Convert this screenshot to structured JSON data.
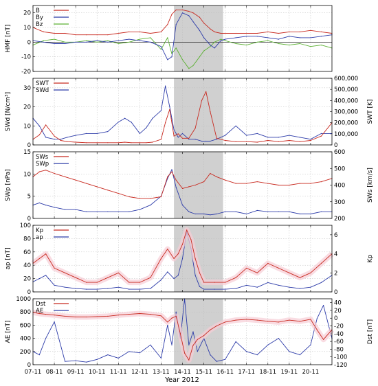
{
  "figure": {
    "xlabel": "Year 2012",
    "x_tick_labels": [
      "07-11",
      "08-11",
      "09-11",
      "10-11",
      "11-11",
      "12-11",
      "13-11",
      "14-11",
      "15-11",
      "16-11",
      "17-11",
      "18-11",
      "19-11",
      "20-11"
    ],
    "x_range": [
      7,
      21
    ],
    "shaded_interval": [
      13.6,
      15.9
    ],
    "colors": {
      "red": "#c8281e",
      "blue": "#2b3aa8",
      "green": "#5bb032",
      "shade": "#d0d0d0",
      "grid": "#bdbdbd",
      "pink_band": "#f6cdd6"
    }
  },
  "chart_data": [
    {
      "type": "line",
      "panel": "HMF",
      "ylabel": "HMF [nT]",
      "ylim": [
        -20,
        25
      ],
      "yticks": [
        "20",
        "10",
        "0",
        "-10",
        "-20"
      ],
      "ytick_values": [
        20,
        10,
        0,
        -10,
        -20
      ],
      "legend": "top-left",
      "x": [
        7.0,
        7.5,
        8.0,
        8.5,
        9.0,
        9.5,
        10.0,
        10.5,
        11.0,
        11.5,
        12.0,
        12.5,
        13.0,
        13.3,
        13.5,
        13.7,
        14.0,
        14.3,
        14.5,
        14.8,
        15.0,
        15.3,
        15.5,
        15.8,
        16.0,
        16.5,
        17.0,
        17.5,
        18.0,
        18.5,
        19.0,
        19.5,
        20.0,
        20.5,
        21.0
      ],
      "series": [
        {
          "name": "B",
          "color": "#c8281e",
          "axis": "left",
          "values": [
            10,
            7,
            6,
            6,
            5,
            5,
            5,
            5,
            6,
            7,
            7,
            6,
            7,
            12,
            19,
            22,
            22,
            21,
            20,
            17,
            13,
            9,
            7,
            6,
            6,
            6,
            6,
            6,
            7,
            6,
            7,
            7,
            8,
            7,
            6
          ]
        },
        {
          "name": "By",
          "color": "#2b3aa8",
          "axis": "left",
          "values": [
            1,
            0,
            -1,
            -1,
            0,
            0,
            1,
            0,
            1,
            2,
            1,
            0,
            -3,
            -12,
            -10,
            12,
            20,
            18,
            14,
            8,
            3,
            -2,
            -4,
            1,
            2,
            3,
            4,
            4,
            3,
            2,
            4,
            3,
            3,
            4,
            5
          ]
        },
        {
          "name": "Bz",
          "color": "#5bb032",
          "axis": "left",
          "values": [
            -2,
            1,
            2,
            0,
            0,
            1,
            0,
            1,
            -1,
            0,
            2,
            3,
            -5,
            3,
            -8,
            -4,
            -12,
            -18,
            -16,
            -10,
            -6,
            -3,
            0,
            2,
            1,
            -1,
            -2,
            0,
            1,
            -1,
            -2,
            -1,
            -3,
            -2,
            -4
          ]
        }
      ]
    },
    {
      "type": "line",
      "panel": "SWd",
      "ylabel": "SWd [N/cm³]",
      "ylabel_right": "SWT [K]",
      "ylim": [
        0,
        35
      ],
      "ylim_right": [
        0,
        600000
      ],
      "yticks": [
        "30",
        "20",
        "10",
        "0"
      ],
      "ytick_values": [
        30,
        20,
        10,
        0
      ],
      "yticks_right": [
        "600,000",
        "500,000",
        "400,000",
        "300,000",
        "200,000",
        "100,000",
        "0"
      ],
      "ytick_values_right": [
        600000,
        500000,
        400000,
        300000,
        200000,
        100000,
        0
      ],
      "legend": "top-left",
      "x": [
        7.0,
        7.3,
        7.6,
        8.0,
        8.3,
        8.6,
        9.0,
        9.5,
        10.0,
        10.5,
        11.0,
        11.3,
        11.6,
        12.0,
        12.3,
        12.6,
        13.0,
        13.2,
        13.4,
        13.6,
        13.8,
        14.0,
        14.3,
        14.6,
        14.9,
        15.1,
        15.3,
        15.6,
        16.0,
        16.5,
        17.0,
        17.5,
        18.0,
        18.5,
        19.0,
        19.5,
        20.0,
        20.5,
        21.0
      ],
      "series": [
        {
          "name": "SWT",
          "color": "#c8281e",
          "axis": "right",
          "values": [
            50000,
            90000,
            180000,
            80000,
            40000,
            30000,
            25000,
            20000,
            20000,
            20000,
            20000,
            25000,
            20000,
            20000,
            20000,
            25000,
            50000,
            200000,
            320000,
            80000,
            100000,
            60000,
            60000,
            150000,
            400000,
            480000,
            300000,
            60000,
            40000,
            30000,
            30000,
            25000,
            40000,
            30000,
            40000,
            30000,
            40000,
            80000,
            200000
          ]
        },
        {
          "name": "SWd",
          "color": "#2b3aa8",
          "axis": "left",
          "values": [
            14,
            10,
            4,
            3,
            3,
            4,
            5,
            6,
            6,
            7,
            12,
            14,
            12,
            6,
            9,
            14,
            18,
            31,
            20,
            8,
            4,
            6,
            3,
            3,
            2,
            2,
            2,
            3,
            5,
            10,
            5,
            6,
            4,
            4,
            5,
            4,
            3,
            6,
            6
          ]
        }
      ]
    },
    {
      "type": "line",
      "panel": "SWp",
      "ylabel": "SWp [nPa]",
      "ylabel_right": "SWs [km/s]",
      "ylim": [
        0,
        15
      ],
      "ylim_right": [
        200,
        600
      ],
      "yticks": [
        "15",
        "10",
        "5",
        "0"
      ],
      "ytick_values": [
        15,
        10,
        5,
        0
      ],
      "yticks_right": [
        "600",
        "500",
        "400",
        "300",
        "200"
      ],
      "ytick_values_right": [
        600,
        500,
        400,
        300,
        200
      ],
      "legend": "top-left",
      "x": [
        7.0,
        7.3,
        7.6,
        8.0,
        8.5,
        9.0,
        9.5,
        10.0,
        10.5,
        11.0,
        11.5,
        12.0,
        12.5,
        13.0,
        13.3,
        13.5,
        13.7,
        14.0,
        14.3,
        14.6,
        15.0,
        15.3,
        15.6,
        16.0,
        16.5,
        17.0,
        17.5,
        18.0,
        18.5,
        19.0,
        19.5,
        20.0,
        20.5,
        21.0
      ],
      "series": [
        {
          "name": "SWs",
          "color": "#c8281e",
          "axis": "right",
          "values": [
            450,
            480,
            490,
            470,
            450,
            430,
            410,
            390,
            370,
            350,
            330,
            320,
            320,
            330,
            450,
            480,
            430,
            380,
            390,
            400,
            420,
            470,
            450,
            430,
            410,
            410,
            420,
            410,
            400,
            400,
            410,
            410,
            420,
            440
          ]
        },
        {
          "name": "SWp",
          "color": "#2b3aa8",
          "axis": "left",
          "values": [
            3,
            3.5,
            3,
            2.5,
            2,
            2,
            1.5,
            1.5,
            1.5,
            1.5,
            1.5,
            2,
            3,
            5,
            9,
            11,
            7,
            3,
            1.5,
            1,
            1,
            0.8,
            1,
            1.5,
            1.5,
            1,
            1.8,
            1.5,
            1.5,
            1.5,
            1,
            1,
            1.5,
            1.5
          ]
        }
      ]
    },
    {
      "type": "line",
      "panel": "ap",
      "ylabel": "ap [nT]",
      "ylabel_right": "Kp",
      "ylim": [
        0,
        100
      ],
      "ylim_right": [
        0,
        7
      ],
      "yticks": [
        "100",
        "80",
        "60",
        "40",
        "20",
        "0"
      ],
      "ytick_values": [
        100,
        80,
        60,
        40,
        20,
        0
      ],
      "yticks_right": [
        "6",
        "4",
        "2",
        "0"
      ],
      "ytick_values_right": [
        6,
        4,
        2,
        0
      ],
      "legend": "top-left",
      "x": [
        7.0,
        7.3,
        7.6,
        8.0,
        8.5,
        9.0,
        9.5,
        10.0,
        10.5,
        11.0,
        11.5,
        12.0,
        12.5,
        13.0,
        13.3,
        13.6,
        13.8,
        14.0,
        14.2,
        14.4,
        14.6,
        14.8,
        15.0,
        15.5,
        16.0,
        16.5,
        17.0,
        17.5,
        18.0,
        18.5,
        19.0,
        19.5,
        20.0,
        20.5,
        21.0
      ],
      "series": [
        {
          "name": "Kp",
          "color": "#c8281e",
          "axis": "right",
          "values": [
            3,
            3.5,
            4,
            2.5,
            2,
            1.5,
            1,
            1,
            1.5,
            2,
            1,
            1,
            1.5,
            3.5,
            4.5,
            3.5,
            4,
            5,
            6.5,
            5.5,
            3.5,
            2,
            1,
            1,
            1,
            1.5,
            2.5,
            2,
            3,
            2.5,
            2,
            1.5,
            2,
            3,
            4
          ]
        },
        {
          "name": "ap",
          "color": "#2b3aa8",
          "axis": "left",
          "values": [
            15,
            20,
            25,
            10,
            7,
            5,
            4,
            4,
            5,
            7,
            4,
            4,
            5,
            18,
            30,
            20,
            25,
            50,
            90,
            65,
            25,
            8,
            4,
            4,
            4,
            5,
            10,
            7,
            14,
            10,
            7,
            5,
            7,
            14,
            25
          ]
        }
      ]
    },
    {
      "type": "line",
      "panel": "AE",
      "ylabel": "AE [nT]",
      "ylabel_right": "Dst [nT]",
      "ylim": [
        0,
        1000
      ],
      "ylim_right": [
        -120,
        50
      ],
      "yticks": [
        "1000",
        "800",
        "600",
        "400",
        "200",
        "0"
      ],
      "ytick_values": [
        1000,
        800,
        600,
        400,
        200,
        0
      ],
      "yticks_right": [
        "40",
        "20",
        "0",
        "-20",
        "-40",
        "-60",
        "-80",
        "-100",
        "-120"
      ],
      "ytick_values_right": [
        40,
        20,
        0,
        -20,
        -40,
        -60,
        -80,
        -100,
        -120
      ],
      "legend": "top-left",
      "x": [
        7.0,
        7.3,
        7.6,
        8.0,
        8.5,
        9.0,
        9.5,
        10.0,
        10.5,
        11.0,
        11.5,
        12.0,
        12.5,
        13.0,
        13.3,
        13.5,
        13.7,
        13.9,
        14.1,
        14.3,
        14.5,
        14.7,
        15.0,
        15.3,
        15.6,
        16.0,
        16.5,
        17.0,
        17.5,
        18.0,
        18.5,
        19.0,
        19.5,
        20.0,
        20.3,
        20.6,
        21.0
      ],
      "series": [
        {
          "name": "Dst",
          "color": "#c8281e",
          "axis": "right",
          "values": [
            15,
            12,
            10,
            8,
            5,
            3,
            3,
            4,
            5,
            8,
            10,
            12,
            10,
            6,
            -10,
            0,
            5,
            -40,
            -90,
            -108,
            -70,
            -55,
            -45,
            -30,
            -20,
            -10,
            -5,
            -3,
            -5,
            -8,
            -10,
            -5,
            -8,
            -3,
            -30,
            -55,
            -30
          ]
        },
        {
          "name": "AE",
          "color": "#2b3aa8",
          "axis": "left",
          "values": [
            200,
            150,
            400,
            650,
            50,
            60,
            40,
            80,
            150,
            100,
            200,
            180,
            300,
            100,
            600,
            300,
            800,
            400,
            1000,
            300,
            500,
            200,
            400,
            150,
            50,
            80,
            350,
            200,
            150,
            300,
            400,
            200,
            150,
            300,
            700,
            900,
            400
          ]
        }
      ]
    }
  ]
}
